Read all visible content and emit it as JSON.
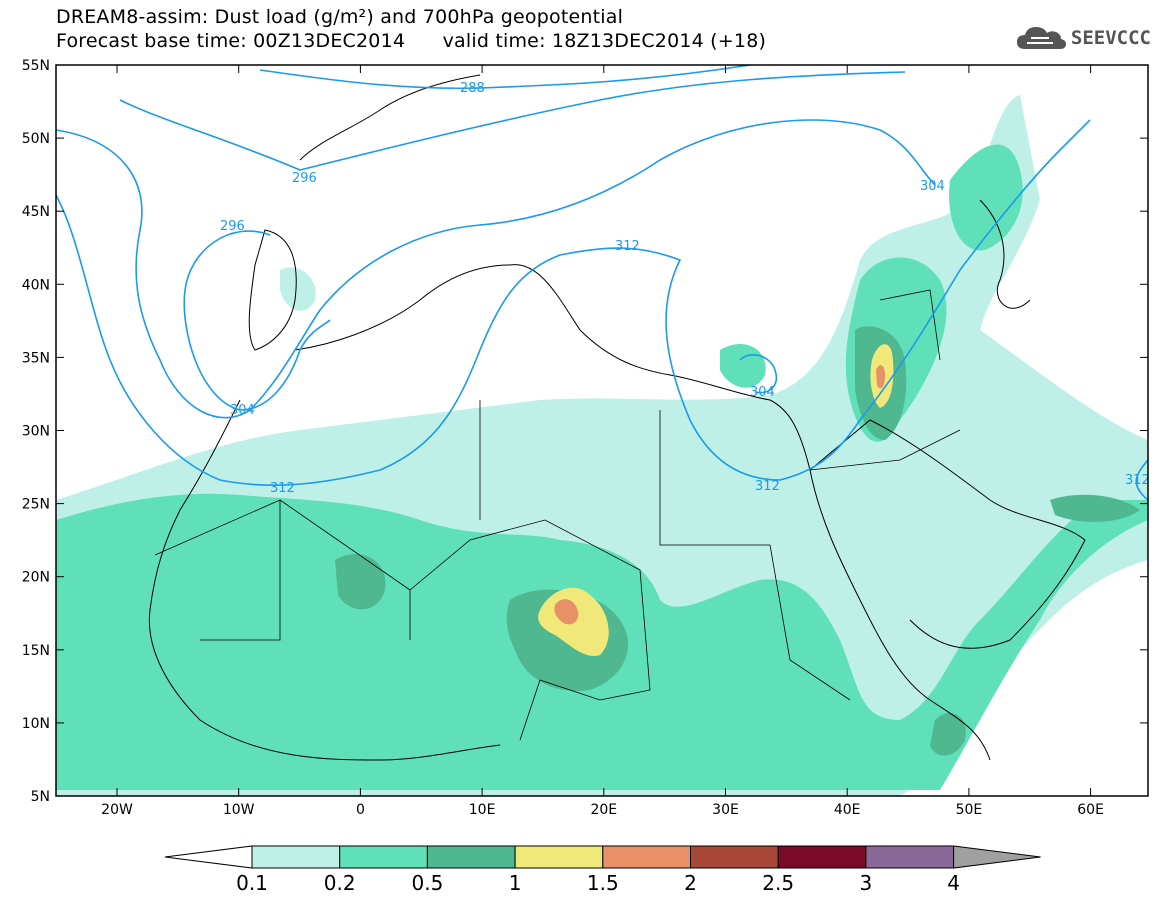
{
  "header": {
    "title_line1": "DREAM8-assim: Dust load (g/m²) and 700hPa geopotential",
    "title_line2": "Forecast base time: 00Z13DEC2014      valid time: 18Z13DEC2014 (+18)",
    "logo_text": "SEEVCCC"
  },
  "map": {
    "lat_labels": [
      "55N",
      "50N",
      "45N",
      "40N",
      "35N",
      "30N",
      "25N",
      "20N",
      "15N",
      "10N",
      "5N"
    ],
    "lon_labels": [
      "20W",
      "10W",
      "0",
      "10E",
      "20E",
      "30E",
      "40E",
      "50E",
      "60E"
    ],
    "contour_labels": [
      "288",
      "296",
      "296",
      "304",
      "304",
      "304",
      "312",
      "312",
      "312",
      "312"
    ]
  },
  "colorbar": {
    "labels": [
      "0.1",
      "0.2",
      "0.5",
      "1",
      "1.5",
      "2",
      "2.5",
      "3",
      "4"
    ],
    "colors": [
      "#ffffff",
      "#bff0e8",
      "#5fe0b8",
      "#4fb890",
      "#f0e878",
      "#e89068",
      "#a84838",
      "#7a0a28",
      "#8a6898",
      "#a0a0a0"
    ]
  }
}
